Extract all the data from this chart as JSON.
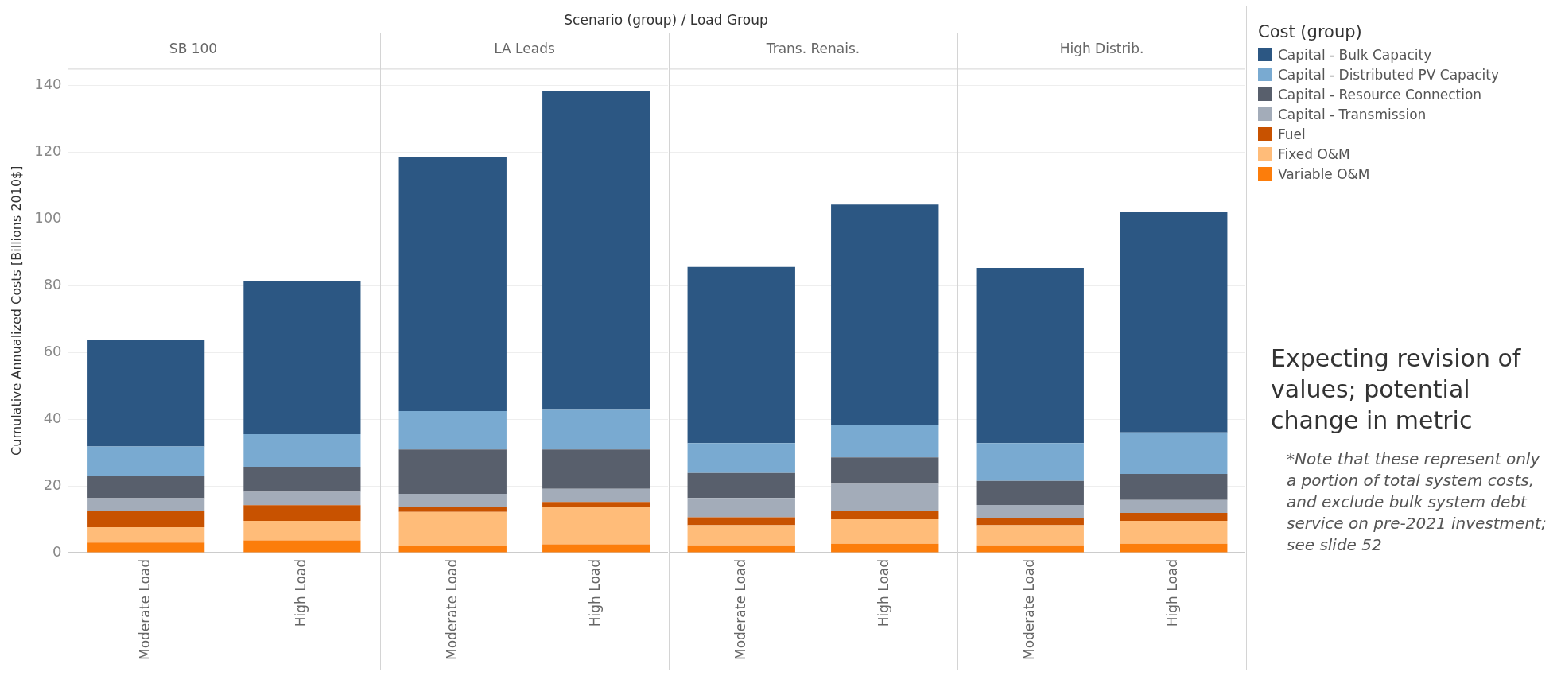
{
  "chart_data": [
    {
      "type": "bar",
      "title": "SB 100",
      "ylabel": "Cumulative Annualized Costs [Billions 2010$]",
      "categories": [
        "Moderate Load",
        "High Load"
      ],
      "stacked": true,
      "ylim": [
        0,
        145
      ],
      "yticks": [
        0,
        20,
        40,
        60,
        80,
        100,
        120,
        140
      ],
      "grid": "y",
      "annotations": [
        "Scenario (group) / Load Group"
      ],
      "series": [
        {
          "color": "#fc7d0b",
          "values": [
            3.0,
            3.7
          ]
        },
        {
          "color": "#ffbc79",
          "values": [
            4.6,
            5.8
          ]
        },
        {
          "color": "#c85200",
          "values": [
            4.8,
            4.7
          ]
        },
        {
          "color": "#a3acb9",
          "values": [
            3.9,
            4.0
          ]
        },
        {
          "color": "#585f6c",
          "values": [
            6.7,
            7.5
          ]
        },
        {
          "color": "#79aad1",
          "values": [
            8.8,
            9.8
          ]
        },
        {
          "color": "#2c5783",
          "values": [
            32.0,
            45.9
          ]
        }
      ]
    },
    {
      "type": "bar",
      "title": "LA Leads",
      "categories": [
        "Moderate Load",
        "High Load"
      ],
      "stacked": true,
      "ylim": [
        0,
        145
      ],
      "yticks": [
        0,
        20,
        40,
        60,
        80,
        100,
        120,
        140
      ],
      "grid": "y",
      "tick_labels": "x",
      "series": [
        {
          "color": "#fc7d0b",
          "values": [
            2.0,
            2.5
          ]
        },
        {
          "color": "#ffbc79",
          "values": [
            10.2,
            11.1
          ]
        },
        {
          "color": "#c85200",
          "values": [
            1.5,
            1.6
          ]
        },
        {
          "color": "#a3acb9",
          "values": [
            3.9,
            3.9
          ]
        },
        {
          "color": "#585f6c",
          "values": [
            13.3,
            11.8
          ]
        },
        {
          "color": "#79aad1",
          "values": [
            11.5,
            12.1
          ]
        },
        {
          "color": "#2c5783",
          "values": [
            76.1,
            95.3
          ]
        }
      ]
    },
    {
      "type": "bar",
      "title": "Trans. Renais.",
      "categories": [
        "Moderate Load",
        "High Load"
      ],
      "stacked": true,
      "ylim": [
        0,
        145
      ],
      "yticks": [
        0,
        20,
        40,
        60,
        80,
        100,
        120,
        140
      ],
      "grid": "y",
      "tick_labels": "x",
      "series": [
        {
          "color": "#fc7d0b",
          "values": [
            2.2,
            2.7
          ]
        },
        {
          "color": "#ffbc79",
          "values": [
            6.0,
            7.3
          ]
        },
        {
          "color": "#c85200",
          "values": [
            2.4,
            2.5
          ]
        },
        {
          "color": "#a3acb9",
          "values": [
            5.8,
            8.1
          ]
        },
        {
          "color": "#585f6c",
          "values": [
            7.5,
            7.9
          ]
        },
        {
          "color": "#79aad1",
          "values": [
            8.9,
            9.6
          ]
        },
        {
          "color": "#2c5783",
          "values": [
            52.8,
            66.2
          ]
        }
      ]
    },
    {
      "type": "bar",
      "title": "High Distrib.",
      "categories": [
        "Moderate Load",
        "High Load"
      ],
      "stacked": true,
      "ylim": [
        0,
        145
      ],
      "yticks": [
        0,
        20,
        40,
        60,
        80,
        100,
        120,
        140
      ],
      "grid": "y",
      "tick_labels": "x",
      "legend": "right",
      "legend_title": "Cost (group)",
      "annotations": [
        "Expecting revision of values; potential change in metric",
        "*Note that these represent only a portion of total system costs, and exclude bulk system debt service on pre-2021 investment; see slide 52"
      ],
      "series": [
        {
          "name": "Variable O&M",
          "color": "#fc7d0b",
          "values": [
            2.2,
            2.7
          ]
        },
        {
          "name": "Fixed O&M",
          "color": "#ffbc79",
          "values": [
            6.0,
            6.8
          ]
        },
        {
          "name": "Fuel",
          "color": "#c85200",
          "values": [
            2.2,
            2.4
          ]
        },
        {
          "name": "Capital - Transmission",
          "color": "#a3acb9",
          "values": [
            3.9,
            3.9
          ]
        },
        {
          "name": "Capital - Resource Connection",
          "color": "#585f6c",
          "values": [
            7.2,
            7.8
          ]
        },
        {
          "name": "Capital - Distributed PV Capacity",
          "color": "#79aad1",
          "values": [
            11.3,
            12.4
          ]
        },
        {
          "name": "Capital - Bulk Capacity",
          "color": "#2c5783",
          "values": [
            52.5,
            66.0
          ]
        }
      ]
    }
  ]
}
